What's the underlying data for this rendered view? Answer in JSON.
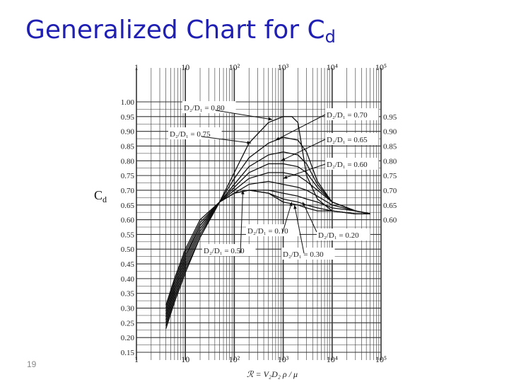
{
  "slide": {
    "title": "Generalized Chart for C",
    "title_sub": "d",
    "side_label": "C",
    "side_label_sub": "d",
    "page_number": "19"
  },
  "chart_data": {
    "type": "line",
    "x_scale": "log",
    "y_scale": "linear",
    "xlim": [
      1,
      100000
    ],
    "ylim": [
      0.15,
      1.0
    ],
    "grid": true,
    "xlabel": "ℛ = V₂D₂ ρ / μ",
    "ylabel": "",
    "x_ticks": [
      "1",
      "10",
      "10²",
      "10³",
      "10⁴",
      "10⁵"
    ],
    "y_ticks_left": [
      "1.00",
      "0.95",
      "0.90",
      "0.85",
      "0.80",
      "0.75",
      "0.70",
      "0.65",
      "0.60",
      "0.55",
      "0.50",
      "0.45",
      "0.40",
      "0.35",
      "0.30",
      "0.25",
      "0.20",
      "0.15"
    ],
    "y_ticks_right": [
      "0.95",
      "0.90",
      "0.85",
      "0.80",
      "0.75",
      "0.70",
      "0.65",
      "0.60"
    ],
    "annotations": [
      {
        "text": "D₂/D₁ = 0.80"
      },
      {
        "text": "D₂/D₁ = 0.75"
      },
      {
        "text": "D₂/D₁ = 0.70"
      },
      {
        "text": "D₂/D₁ = 0.65"
      },
      {
        "text": "D₂/D₁ = 0.60"
      },
      {
        "text": "D₂/D₁ = 0.50"
      },
      {
        "text": "D₂/D₁ = 0.10"
      },
      {
        "text": "D₂/D₁ = 0.30"
      },
      {
        "text": "D₂/D₁ = 0.20"
      }
    ],
    "series": [
      {
        "x": [
          4,
          6,
          10,
          20,
          50,
          100,
          200,
          500,
          1000,
          1500,
          2000,
          3000,
          5000,
          10000,
          30000,
          60000
        ],
        "y": [
          0.31,
          0.4,
          0.5,
          0.6,
          0.66,
          0.76,
          0.86,
          0.93,
          0.95,
          0.95,
          0.93,
          0.75,
          0.67,
          0.63,
          0.62,
          0.62
        ]
      },
      {
        "x": [
          4,
          6,
          10,
          20,
          50,
          100,
          200,
          500,
          1000,
          2000,
          3000,
          5000,
          10000,
          30000,
          60000
        ],
        "y": [
          0.3,
          0.39,
          0.49,
          0.59,
          0.66,
          0.74,
          0.81,
          0.86,
          0.88,
          0.87,
          0.83,
          0.73,
          0.66,
          0.63,
          0.62
        ]
      },
      {
        "x": [
          4,
          6,
          10,
          20,
          50,
          100,
          200,
          500,
          1000,
          2000,
          3000,
          5000,
          10000,
          30000,
          60000
        ],
        "y": [
          0.29,
          0.38,
          0.48,
          0.58,
          0.66,
          0.72,
          0.78,
          0.82,
          0.83,
          0.82,
          0.79,
          0.72,
          0.66,
          0.63,
          0.62
        ]
      },
      {
        "x": [
          4,
          6,
          10,
          20,
          50,
          100,
          200,
          500,
          1000,
          2000,
          3000,
          5000,
          10000,
          30000,
          60000
        ],
        "y": [
          0.28,
          0.37,
          0.47,
          0.58,
          0.66,
          0.71,
          0.76,
          0.79,
          0.79,
          0.78,
          0.76,
          0.71,
          0.66,
          0.63,
          0.62
        ]
      },
      {
        "x": [
          4,
          6,
          10,
          20,
          50,
          100,
          200,
          500,
          1000,
          2000,
          3000,
          5000,
          10000,
          30000,
          60000
        ],
        "y": [
          0.27,
          0.36,
          0.46,
          0.57,
          0.66,
          0.7,
          0.74,
          0.76,
          0.76,
          0.75,
          0.73,
          0.7,
          0.66,
          0.63,
          0.62
        ]
      },
      {
        "x": [
          4,
          6,
          10,
          20,
          50,
          100,
          200,
          500,
          1000,
          2000,
          3000,
          5000,
          10000,
          30000,
          60000
        ],
        "y": [
          0.26,
          0.35,
          0.45,
          0.56,
          0.66,
          0.69,
          0.72,
          0.73,
          0.72,
          0.71,
          0.7,
          0.68,
          0.65,
          0.63,
          0.62
        ]
      },
      {
        "x": [
          4,
          6,
          10,
          20,
          50,
          100,
          200,
          500,
          1000,
          2000,
          3000,
          5000,
          10000,
          30000,
          60000
        ],
        "y": [
          0.25,
          0.34,
          0.44,
          0.55,
          0.66,
          0.69,
          0.7,
          0.7,
          0.69,
          0.68,
          0.67,
          0.66,
          0.64,
          0.63,
          0.62
        ]
      },
      {
        "x": [
          4,
          6,
          10,
          20,
          50,
          100,
          200,
          500,
          1000,
          2000,
          3000,
          5000,
          10000,
          30000,
          60000
        ],
        "y": [
          0.24,
          0.33,
          0.43,
          0.54,
          0.66,
          0.69,
          0.7,
          0.69,
          0.67,
          0.66,
          0.65,
          0.64,
          0.63,
          0.62,
          0.62
        ]
      },
      {
        "x": [
          4,
          6,
          10,
          20,
          50,
          100,
          200,
          500,
          1000,
          2000,
          3000,
          5000,
          10000,
          30000,
          60000
        ],
        "y": [
          0.23,
          0.32,
          0.42,
          0.54,
          0.66,
          0.69,
          0.7,
          0.69,
          0.66,
          0.65,
          0.64,
          0.63,
          0.63,
          0.62,
          0.62
        ]
      }
    ]
  }
}
